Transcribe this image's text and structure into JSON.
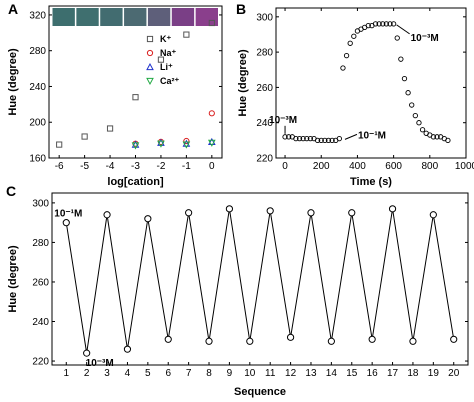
{
  "chart_data": [
    {
      "panel": "A",
      "type": "scatter",
      "xlabel": "log[cation]",
      "ylabel": "Hue (degree)",
      "xlim": [
        -6.4,
        0.4
      ],
      "ylim": [
        160,
        330
      ],
      "xticks": [
        "-6",
        "-5",
        "-4",
        "-3",
        "-2",
        "-1",
        "0"
      ],
      "yticks": [
        "160",
        "200",
        "240",
        "280",
        "320"
      ],
      "legend": "top-right",
      "swatches": [
        "#3d6e6e",
        "#3f6f6f",
        "#426c70",
        "#4c6a72",
        "#5e5f7a",
        "#7a3f86",
        "#8a3f8c"
      ],
      "series": [
        {
          "name": "K⁺",
          "marker": "square",
          "color": "#555555",
          "x": [
            -6,
            -5,
            -4,
            -3,
            -2,
            -1,
            0
          ],
          "y": [
            175,
            184,
            193,
            228,
            270,
            298,
            311
          ]
        },
        {
          "name": "Na⁺",
          "marker": "circle",
          "color": "#d92020",
          "x": [
            -3,
            -2,
            -1,
            0
          ],
          "y": [
            176,
            178,
            179,
            210
          ]
        },
        {
          "name": "Li⁺",
          "marker": "triangle-up",
          "color": "#2033cc",
          "x": [
            -3,
            -2,
            -1,
            0
          ],
          "y": [
            175,
            177,
            176,
            178
          ]
        },
        {
          "name": "Ca²⁺",
          "marker": "triangle-down",
          "color": "#22aa44",
          "x": [
            -3,
            -2,
            -1,
            0
          ],
          "y": [
            174,
            176,
            175,
            177
          ]
        }
      ]
    },
    {
      "panel": "B",
      "type": "scatter",
      "xlabel": "Time (s)",
      "ylabel": "Hue (degree)",
      "xlim": [
        -50,
        1000
      ],
      "ylim": [
        220,
        305
      ],
      "xticks": [
        "0",
        "200",
        "400",
        "600",
        "800",
        "1000"
      ],
      "yticks": [
        "220",
        "240",
        "260",
        "280",
        "300"
      ],
      "annotations": [
        {
          "text": "10⁻³M",
          "x": 0,
          "y": 232
        },
        {
          "text": "10⁻¹M",
          "x": 320,
          "y": 230
        },
        {
          "text": "10⁻³M",
          "x": 600,
          "y": 296
        }
      ],
      "series": [
        {
          "name": "",
          "x": [
            0,
            20,
            40,
            60,
            80,
            100,
            120,
            140,
            160,
            180,
            200,
            220,
            240,
            260,
            280,
            300,
            320,
            340,
            360,
            380,
            400,
            420,
            440,
            460,
            480,
            500,
            520,
            540,
            560,
            580,
            600,
            620,
            640,
            660,
            680,
            700,
            720,
            740,
            760,
            780,
            800,
            820,
            840,
            860,
            880,
            900
          ],
          "y": [
            232,
            232,
            232,
            231,
            231,
            231,
            231,
            231,
            231,
            230,
            230,
            230,
            230,
            230,
            230,
            231,
            271,
            278,
            285,
            289,
            292,
            293,
            294,
            295,
            295,
            296,
            296,
            296,
            296,
            296,
            296,
            288,
            276,
            265,
            257,
            250,
            244,
            240,
            236,
            234,
            233,
            232,
            232,
            232,
            231,
            230
          ]
        }
      ]
    },
    {
      "panel": "C",
      "type": "line",
      "xlabel": "Sequence",
      "ylabel": "Hue (degree)",
      "xlim": [
        0.3,
        20.7
      ],
      "ylim": [
        218,
        305
      ],
      "xticks": [
        "1",
        "2",
        "3",
        "4",
        "5",
        "6",
        "7",
        "8",
        "9",
        "10",
        "11",
        "12",
        "13",
        "14",
        "15",
        "16",
        "17",
        "18",
        "19",
        "20"
      ],
      "yticks": [
        "220",
        "240",
        "260",
        "280",
        "300"
      ],
      "annotations": [
        {
          "text": "10⁻¹M",
          "x": 1,
          "y": 290
        },
        {
          "text": "10⁻³M",
          "x": 2,
          "y": 224
        }
      ],
      "series": [
        {
          "name": "",
          "x": [
            1,
            2,
            3,
            4,
            5,
            6,
            7,
            8,
            9,
            10,
            11,
            12,
            13,
            14,
            15,
            16,
            17,
            18,
            19,
            20
          ],
          "y": [
            290,
            224,
            294,
            226,
            292,
            231,
            295,
            230,
            297,
            230,
            296,
            232,
            295,
            230,
            295,
            231,
            297,
            230,
            294,
            231
          ]
        }
      ]
    }
  ]
}
